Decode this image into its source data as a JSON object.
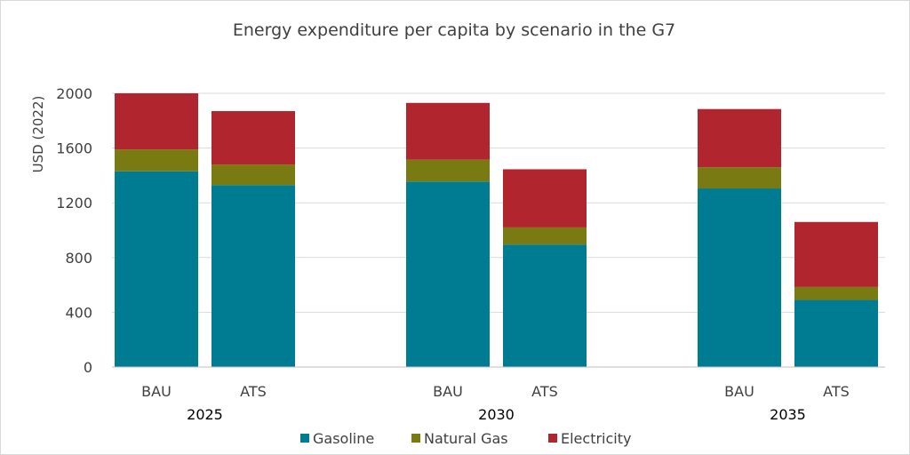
{
  "chart_data": {
    "type": "bar",
    "stacked": true,
    "title": "Energy expenditure per capita by scenario in the G7",
    "ylabel": "USD (2022)",
    "xlabel": "",
    "ylim": [
      0,
      2000
    ],
    "yticks": [
      0,
      400,
      800,
      1200,
      1600,
      2000
    ],
    "grid": true,
    "legend_position": "bottom",
    "groups": [
      {
        "year": "2025",
        "bars": [
          {
            "scenario": "BAU",
            "values": [
              1430,
              160,
              410
            ]
          },
          {
            "scenario": "ATS",
            "values": [
              1330,
              150,
              390
            ]
          }
        ]
      },
      {
        "year": "2030",
        "bars": [
          {
            "scenario": "BAU",
            "values": [
              1355,
              160,
              415
            ]
          },
          {
            "scenario": "ATS",
            "values": [
              895,
              125,
              425
            ]
          }
        ]
      },
      {
        "year": "2035",
        "bars": [
          {
            "scenario": "BAU",
            "values": [
              1305,
              155,
              425
            ]
          },
          {
            "scenario": "ATS",
            "values": [
              490,
              95,
              475
            ]
          }
        ]
      }
    ],
    "series": [
      {
        "name": "Gasoline",
        "color": "#007C92"
      },
      {
        "name": "Natural Gas",
        "color": "#7A7A12"
      },
      {
        "name": "Electricity",
        "color": "#B0252E"
      }
    ]
  }
}
